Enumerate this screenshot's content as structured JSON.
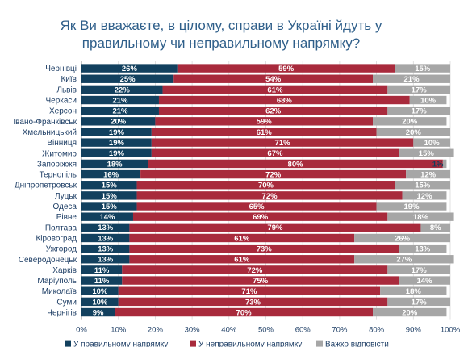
{
  "chart_data": {
    "type": "bar",
    "orientation": "horizontal",
    "stacked": true,
    "title_line1": "Як Ви вважаєте, в цілому, справи в Україні йдуть у",
    "title_line2": "правильному чи неправильному напрямку?",
    "categories": [
      "Чернівці",
      "Київ",
      "Львів",
      "Черкаси",
      "Херсон",
      "Івано-Франківськ",
      "Хмельницький",
      "Вінниця",
      "Житомир",
      "Запоріжжя",
      "Тернопіль",
      "Дніпропетровськ",
      "Луцьк",
      "Одеса",
      "Рівне",
      "Полтава",
      "Кіровоград",
      "Ужгород",
      "Северодонецьк",
      "Харків",
      "Маріуполь",
      "Миколаїв",
      "Суми",
      "Чернігів"
    ],
    "series": [
      {
        "name": "У правильному напрямку",
        "color": "#12405e",
        "values": [
          26,
          25,
          22,
          21,
          21,
          20,
          19,
          19,
          19,
          18,
          16,
          15,
          15,
          15,
          14,
          13,
          13,
          13,
          13,
          11,
          11,
          10,
          10,
          9
        ],
        "labels": [
          "26%",
          "25%",
          "22%",
          "21%",
          "21%",
          "20%",
          "19%",
          "19%",
          "19%",
          "18%",
          "16%",
          "15%",
          "15%",
          "15%",
          "14%",
          "13%",
          "13%",
          "13%",
          "13%",
          "11%",
          "11%",
          "10%",
          "10%",
          "9%"
        ]
      },
      {
        "name": "У неправильному напрямку",
        "color": "#a82a3c",
        "values": [
          59,
          54,
          61,
          68,
          62,
          59,
          61,
          71,
          67,
          80,
          72,
          70,
          72,
          65,
          69,
          79,
          61,
          73,
          61,
          72,
          75,
          71,
          73,
          70
        ],
        "labels": [
          "59%",
          "54%",
          "61%",
          "68%",
          "62%",
          "59%",
          "61%",
          "71%",
          "67%",
          "80%",
          "72%",
          "70%",
          "72%",
          "65%",
          "69%",
          "79%",
          "61%",
          "73%",
          "61%",
          "72%",
          "75%",
          "71%",
          "73%",
          "70%"
        ]
      },
      {
        "name": "Важко відповісти",
        "color": "#a6a6a6",
        "values": [
          15,
          21,
          17,
          10,
          17,
          20,
          20,
          10,
          15,
          1,
          12,
          15,
          12,
          19,
          18,
          8,
          26,
          13,
          27,
          17,
          14,
          18,
          17,
          20
        ],
        "labels": [
          "15%",
          "21%",
          "17%",
          "10%",
          "17%",
          "20%",
          "20%",
          "10%",
          "15%",
          "1%",
          "12%",
          "15%",
          "12%",
          "19%",
          "18%",
          "8%",
          "26%",
          "13%",
          "27%",
          "17%",
          "14%",
          "18%",
          "17%",
          "20%"
        ]
      }
    ],
    "xticks": [
      "0%",
      "10%",
      "20%",
      "30%",
      "40%",
      "50%",
      "60%",
      "70%",
      "80%",
      "90%",
      "100%"
    ],
    "xlim": [
      0,
      100
    ],
    "grid": true,
    "legend_position": "bottom"
  }
}
